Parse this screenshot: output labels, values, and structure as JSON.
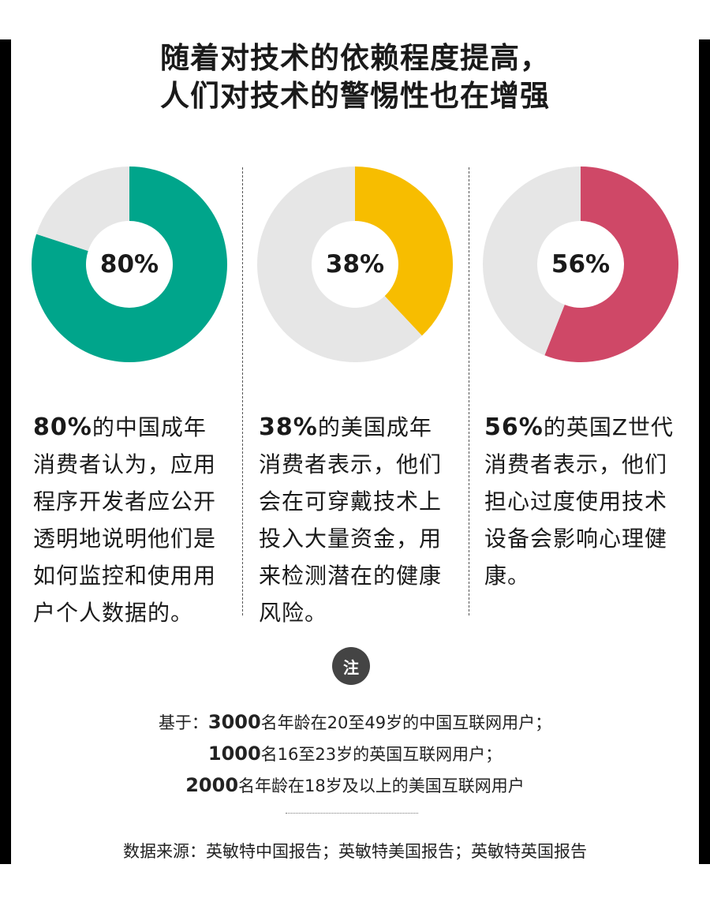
{
  "title": {
    "line1": "随着对技术的依赖程度提高，",
    "line2": "人们对技术的警惕性也在增强"
  },
  "colors": {
    "china": "#00a58b",
    "us": "#f7bd00",
    "uk": "#cf4867",
    "remainder": "#e6e6e6"
  },
  "chart_data": [
    {
      "type": "pie",
      "values": [
        80,
        20
      ],
      "label": "80%"
    },
    {
      "type": "pie",
      "values": [
        38,
        62
      ],
      "label": "38%"
    },
    {
      "type": "pie",
      "values": [
        56,
        44
      ],
      "label": "56%"
    }
  ],
  "columns": [
    {
      "pct": "80%",
      "text": "的中国成年消费者认为，应用程序开发者应公开透明地说明他们是如何监控和使用用户个人数据的。"
    },
    {
      "pct": "38%",
      "text": "的美国成年消费者表示，他们会在可穿戴技术上投入大量资金，用来检测潜在的健康风险。"
    },
    {
      "pct": "56%",
      "text": "的英国Z世代消费者表示，他们担心过度使用技术设备会影响心理健康。"
    }
  ],
  "note": {
    "badge": "注",
    "line1_prefix": "基于：",
    "line1_num": "3000",
    "line1_rest": "名年龄在20至49岁的中国互联网用户；",
    "line2_num": "1000",
    "line2_rest": "名16至23岁的英国互联网用户；",
    "line3_num": "2000",
    "line3_rest": "名年龄在18岁及以上的美国互联网用户"
  },
  "source": "数据来源：英敏特中国报告；英敏特美国报告；英敏特英国报告"
}
